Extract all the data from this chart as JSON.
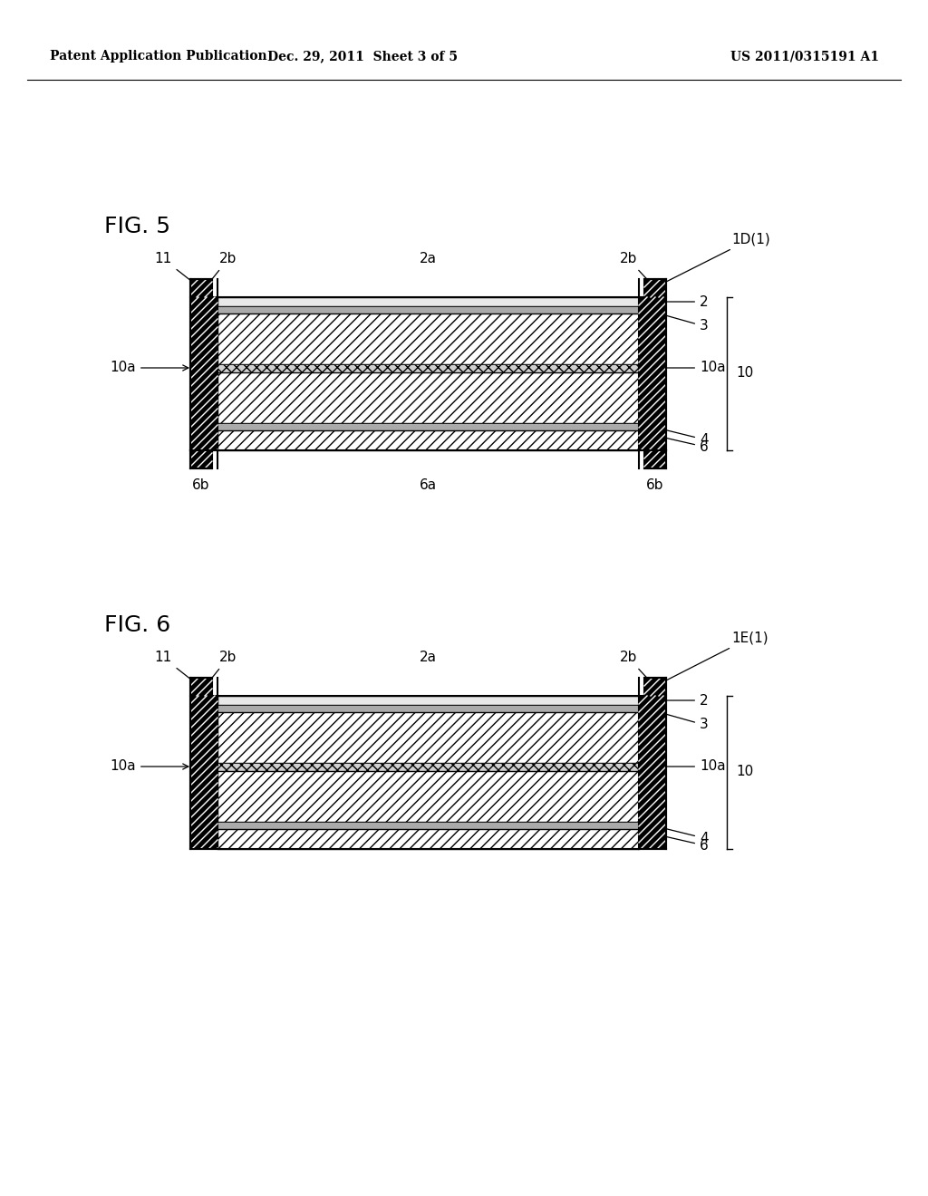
{
  "header_left": "Patent Application Publication",
  "header_center": "Dec. 29, 2011  Sheet 3 of 5",
  "header_right": "US 2011/0315191 A1",
  "fig5_label": "FIG. 5",
  "fig6_label": "FIG. 6",
  "bg_color": "#ffffff"
}
